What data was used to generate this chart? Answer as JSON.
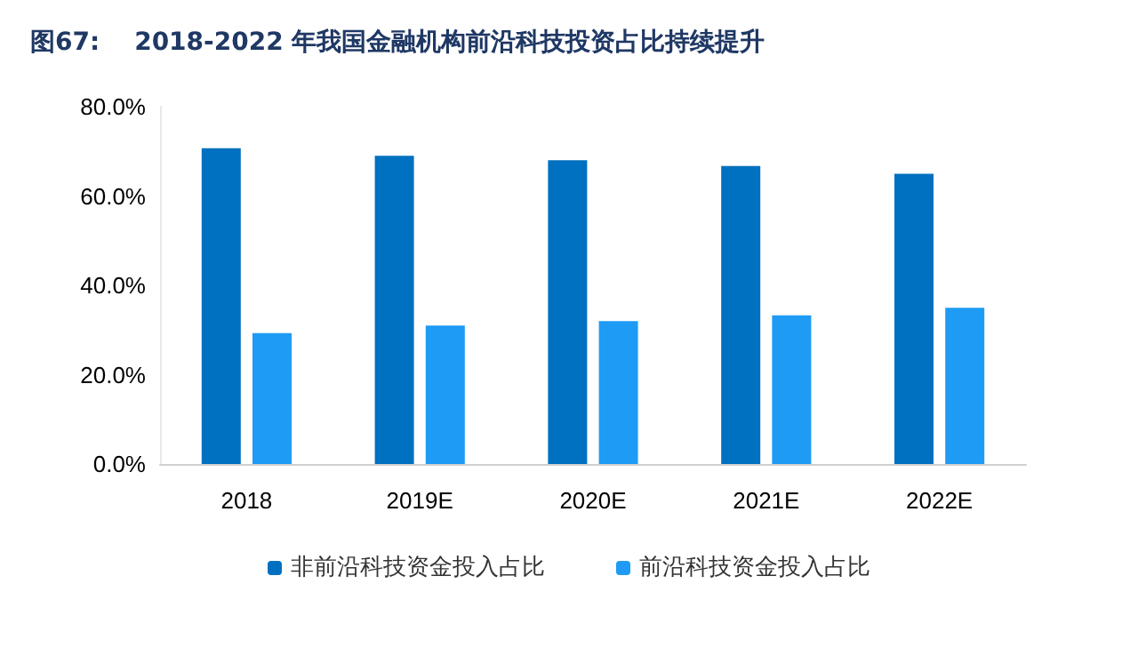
{
  "chart_data": {
    "type": "bar",
    "title": "图67:    2018-2022 年我国金融机构前沿科技投资占比持续提升",
    "categories": [
      "2018",
      "2019E",
      "2020E",
      "2021E",
      "2022E"
    ],
    "series": [
      {
        "name": "非前沿科技资金投入占比",
        "color": "#0070c0",
        "values": [
          70.7,
          69,
          68,
          66.7,
          65
        ]
      },
      {
        "name": "前沿科技资金投入占比",
        "color": "#1e9bf5",
        "values": [
          29.3,
          31,
          32,
          33.3,
          35
        ]
      }
    ],
    "ylim": [
      0,
      80
    ],
    "yticks": [
      {
        "value": 0,
        "label": "0.0%"
      },
      {
        "value": 20,
        "label": "20.0%"
      },
      {
        "value": 40,
        "label": "40.0%"
      },
      {
        "value": 60,
        "label": "60.0%"
      },
      {
        "value": 80,
        "label": "80.0%"
      }
    ],
    "grid": false,
    "legend": "bottom"
  }
}
